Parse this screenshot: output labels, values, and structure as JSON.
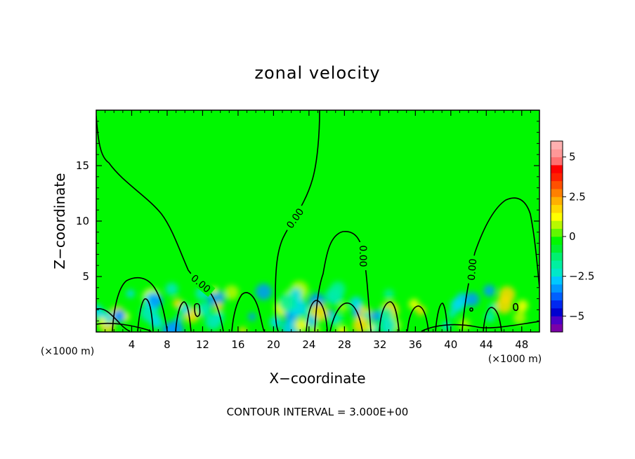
{
  "chart_data": {
    "type": "heatmap",
    "title": "zonal velocity",
    "xlabel": "X−coordinate",
    "ylabel": "Z−coordinate",
    "x_unit_left": "(×1000 m)",
    "x_unit_right": "(×1000 m)",
    "xlim": [
      0,
      50
    ],
    "ylim": [
      0,
      20
    ],
    "x_ticks": [
      4,
      8,
      12,
      16,
      20,
      24,
      28,
      32,
      36,
      40,
      44,
      48
    ],
    "x_tick_labels": [
      "4",
      "8",
      "12",
      "16",
      "20",
      "24",
      "28",
      "32",
      "36",
      "40",
      "44",
      "48"
    ],
    "y_ticks": [
      5,
      10,
      15
    ],
    "y_tick_labels": [
      "5",
      "10",
      "15"
    ],
    "contour_interval_text": "CONTOUR INTERVAL = 3.000E+00",
    "contour_labels": [
      "0.00",
      "0.00",
      "0.00",
      "0.00"
    ],
    "background_value": 0,
    "colorbar": {
      "range": [
        -6,
        6
      ],
      "ticks": [
        5,
        2.5,
        0,
        -2.5,
        -5
      ],
      "tick_labels": [
        "5",
        "2.5",
        "0",
        "−2.5",
        "−5"
      ],
      "colors": [
        "#7a00a8",
        "#4b00c8",
        "#0000d0",
        "#0028f0",
        "#0060ff",
        "#0098ff",
        "#00c8ff",
        "#00e8c8",
        "#00f0a0",
        "#00f070",
        "#00f030",
        "#00f800",
        "#60f800",
        "#b8f800",
        "#ffff00",
        "#ffd800",
        "#ffb000",
        "#ff8000",
        "#ff5000",
        "#ff2000",
        "#ff0000",
        "#ff7070",
        "#ff9898",
        "#ffb0b0"
      ]
    },
    "colors": {
      "field": "#00f800",
      "frame": "#000000"
    }
  }
}
